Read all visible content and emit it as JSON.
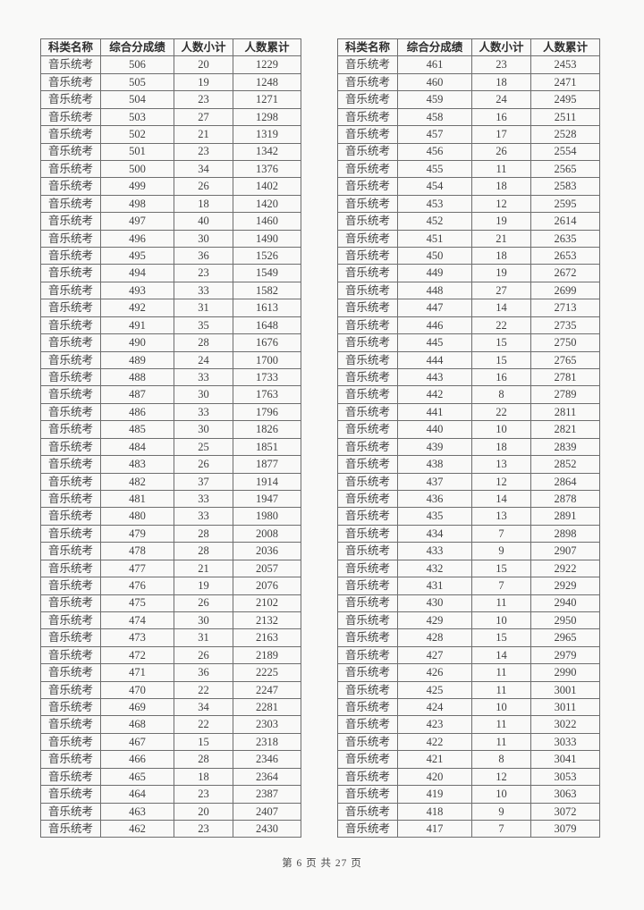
{
  "page": {
    "footer": "第 6 页 共 27 页"
  },
  "table_headers": [
    "科类名称",
    "综合分成绩",
    "人数小计",
    "人数累计"
  ],
  "category": "音乐统考",
  "left_table": {
    "columns": [
      "科类名称",
      "综合分成绩",
      "人数小计",
      "人数累计"
    ],
    "rows": [
      [
        506,
        20,
        1229
      ],
      [
        505,
        19,
        1248
      ],
      [
        504,
        23,
        1271
      ],
      [
        503,
        27,
        1298
      ],
      [
        502,
        21,
        1319
      ],
      [
        501,
        23,
        1342
      ],
      [
        500,
        34,
        1376
      ],
      [
        499,
        26,
        1402
      ],
      [
        498,
        18,
        1420
      ],
      [
        497,
        40,
        1460
      ],
      [
        496,
        30,
        1490
      ],
      [
        495,
        36,
        1526
      ],
      [
        494,
        23,
        1549
      ],
      [
        493,
        33,
        1582
      ],
      [
        492,
        31,
        1613
      ],
      [
        491,
        35,
        1648
      ],
      [
        490,
        28,
        1676
      ],
      [
        489,
        24,
        1700
      ],
      [
        488,
        33,
        1733
      ],
      [
        487,
        30,
        1763
      ],
      [
        486,
        33,
        1796
      ],
      [
        485,
        30,
        1826
      ],
      [
        484,
        25,
        1851
      ],
      [
        483,
        26,
        1877
      ],
      [
        482,
        37,
        1914
      ],
      [
        481,
        33,
        1947
      ],
      [
        480,
        33,
        1980
      ],
      [
        479,
        28,
        2008
      ],
      [
        478,
        28,
        2036
      ],
      [
        477,
        21,
        2057
      ],
      [
        476,
        19,
        2076
      ],
      [
        475,
        26,
        2102
      ],
      [
        474,
        30,
        2132
      ],
      [
        473,
        31,
        2163
      ],
      [
        472,
        26,
        2189
      ],
      [
        471,
        36,
        2225
      ],
      [
        470,
        22,
        2247
      ],
      [
        469,
        34,
        2281
      ],
      [
        468,
        22,
        2303
      ],
      [
        467,
        15,
        2318
      ],
      [
        466,
        28,
        2346
      ],
      [
        465,
        18,
        2364
      ],
      [
        464,
        23,
        2387
      ],
      [
        463,
        20,
        2407
      ],
      [
        462,
        23,
        2430
      ]
    ]
  },
  "right_table": {
    "columns": [
      "科类名称",
      "综合分成绩",
      "人数小计",
      "人数累计"
    ],
    "rows": [
      [
        461,
        23,
        2453
      ],
      [
        460,
        18,
        2471
      ],
      [
        459,
        24,
        2495
      ],
      [
        458,
        16,
        2511
      ],
      [
        457,
        17,
        2528
      ],
      [
        456,
        26,
        2554
      ],
      [
        455,
        11,
        2565
      ],
      [
        454,
        18,
        2583
      ],
      [
        453,
        12,
        2595
      ],
      [
        452,
        19,
        2614
      ],
      [
        451,
        21,
        2635
      ],
      [
        450,
        18,
        2653
      ],
      [
        449,
        19,
        2672
      ],
      [
        448,
        27,
        2699
      ],
      [
        447,
        14,
        2713
      ],
      [
        446,
        22,
        2735
      ],
      [
        445,
        15,
        2750
      ],
      [
        444,
        15,
        2765
      ],
      [
        443,
        16,
        2781
      ],
      [
        442,
        8,
        2789
      ],
      [
        441,
        22,
        2811
      ],
      [
        440,
        10,
        2821
      ],
      [
        439,
        18,
        2839
      ],
      [
        438,
        13,
        2852
      ],
      [
        437,
        12,
        2864
      ],
      [
        436,
        14,
        2878
      ],
      [
        435,
        13,
        2891
      ],
      [
        434,
        7,
        2898
      ],
      [
        433,
        9,
        2907
      ],
      [
        432,
        15,
        2922
      ],
      [
        431,
        7,
        2929
      ],
      [
        430,
        11,
        2940
      ],
      [
        429,
        10,
        2950
      ],
      [
        428,
        15,
        2965
      ],
      [
        427,
        14,
        2979
      ],
      [
        426,
        11,
        2990
      ],
      [
        425,
        11,
        3001
      ],
      [
        424,
        10,
        3011
      ],
      [
        423,
        11,
        3022
      ],
      [
        422,
        11,
        3033
      ],
      [
        421,
        8,
        3041
      ],
      [
        420,
        12,
        3053
      ],
      [
        419,
        10,
        3063
      ],
      [
        418,
        9,
        3072
      ],
      [
        417,
        7,
        3079
      ]
    ]
  }
}
